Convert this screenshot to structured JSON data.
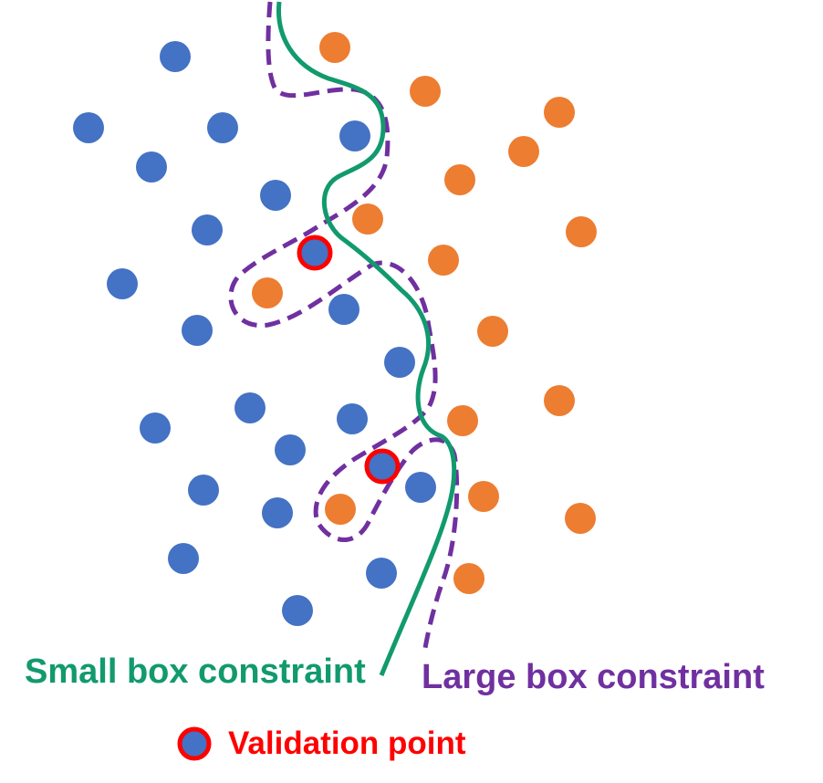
{
  "colors": {
    "class_a": "#4472C4",
    "class_b": "#ED7D31",
    "small_boundary": "#119A6E",
    "large_boundary": "#7030A0",
    "validation_ring": "#FF0000",
    "background": "#FFFFFF"
  },
  "labels": {
    "small_box": "Small box constraint",
    "large_box": "Large box constraint",
    "validation": "Validation point"
  }
}
